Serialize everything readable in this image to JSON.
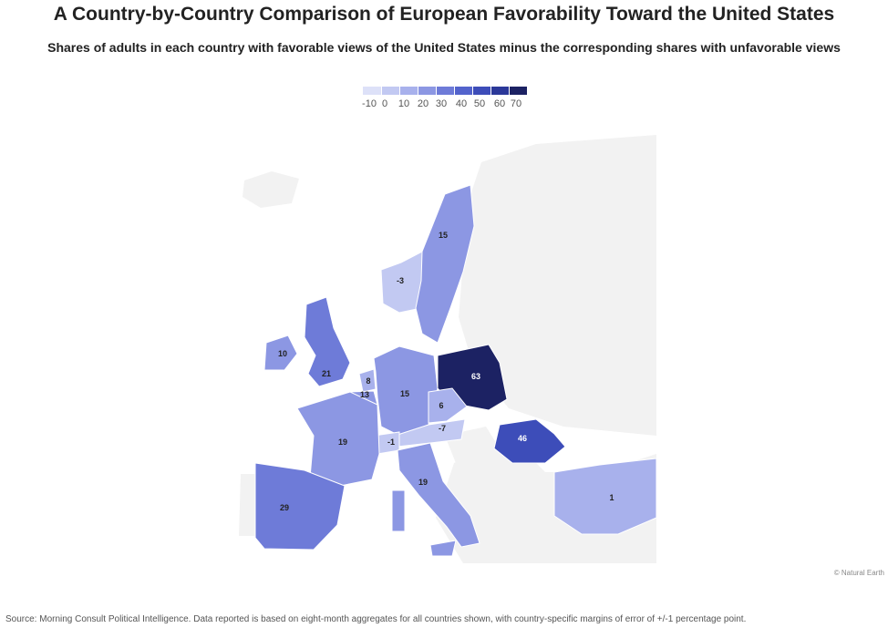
{
  "title": "A Country-by-Country Comparison of European Favorability Toward the United States",
  "subtitle": "Shares of adults in each country with favorable views of the United States minus the corresponding shares with unfavorable views",
  "legend": {
    "ticks": [
      "-10",
      "0",
      "10",
      "20",
      "30",
      "40",
      "50",
      "60",
      "70"
    ],
    "colors": [
      "#dde1f8",
      "#c2c9f2",
      "#a8b1ec",
      "#8c97e3",
      "#6e7bd8",
      "#5363cc",
      "#3d4db9",
      "#2b3899",
      "#1c2263"
    ]
  },
  "countries": [
    {
      "name": "norway",
      "value": -3,
      "label": "-3"
    },
    {
      "name": "sweden",
      "value": 15,
      "label": "15"
    },
    {
      "name": "ireland",
      "value": 10,
      "label": "10"
    },
    {
      "name": "united-kingdom",
      "value": 21,
      "label": "21"
    },
    {
      "name": "netherlands",
      "value": 8,
      "label": "8"
    },
    {
      "name": "belgium",
      "value": 13,
      "label": "13"
    },
    {
      "name": "germany",
      "value": 15,
      "label": "15"
    },
    {
      "name": "poland",
      "value": 63,
      "label": "63"
    },
    {
      "name": "czechia",
      "value": 6,
      "label": "6"
    },
    {
      "name": "austria",
      "value": -7,
      "label": "-7"
    },
    {
      "name": "switzerland",
      "value": -1,
      "label": "-1"
    },
    {
      "name": "france",
      "value": 19,
      "label": "19"
    },
    {
      "name": "italy",
      "value": 19,
      "label": "19"
    },
    {
      "name": "spain",
      "value": 29,
      "label": "29"
    },
    {
      "name": "romania",
      "value": 46,
      "label": "46"
    },
    {
      "name": "turkey",
      "value": 1,
      "label": "1"
    }
  ],
  "credit": "© Natural Earth",
  "source": "Source: Morning Consult Political Intelligence. Data reported is based on eight-month aggregates for all countries shown, with country-specific margins of error of +/-1 percentage point."
}
